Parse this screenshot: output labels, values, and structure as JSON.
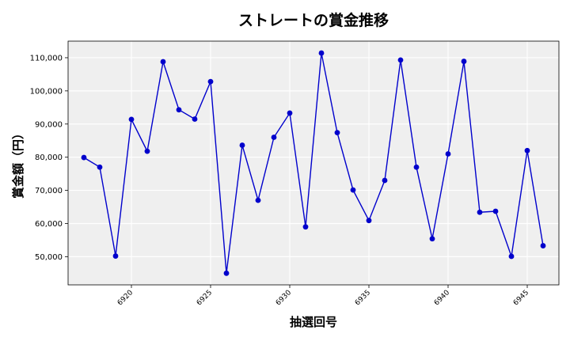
{
  "chart_data": {
    "type": "line",
    "title": "ストレートの賞金推移",
    "xlabel": "抽選回号",
    "ylabel": "賞金額（円）",
    "xlim": [
      6916,
      6947
    ],
    "ylim": [
      41500,
      115000
    ],
    "x_ticks": [
      6920,
      6925,
      6930,
      6935,
      6940,
      6945
    ],
    "y_ticks": [
      50000,
      60000,
      70000,
      80000,
      90000,
      100000,
      110000
    ],
    "y_tick_labels": [
      "50,000",
      "60,000",
      "70,000",
      "80,000",
      "90,000",
      "100,000",
      "110,000"
    ],
    "grid": true,
    "colors": {
      "line": "#0000cc",
      "marker": "#0000cc",
      "plot_bg": "#efefef",
      "grid": "#ffffff"
    },
    "series": [
      {
        "x": [
          6917,
          6918,
          6919,
          6920,
          6921,
          6922,
          6923,
          6924,
          6925,
          6926,
          6927,
          6928,
          6929,
          6930,
          6931,
          6932,
          6933,
          6934,
          6935,
          6936,
          6937,
          6938,
          6939,
          6940,
          6941,
          6942,
          6943,
          6944,
          6945,
          6946
        ],
        "y": [
          79900,
          77000,
          50200,
          91400,
          81800,
          108800,
          94300,
          91500,
          102800,
          45000,
          83600,
          67000,
          86000,
          93300,
          59000,
          111400,
          87400,
          70100,
          60900,
          73000,
          109300,
          77000,
          55400,
          81000,
          108900,
          63400,
          63700,
          50100,
          82000,
          53300
        ]
      }
    ]
  }
}
